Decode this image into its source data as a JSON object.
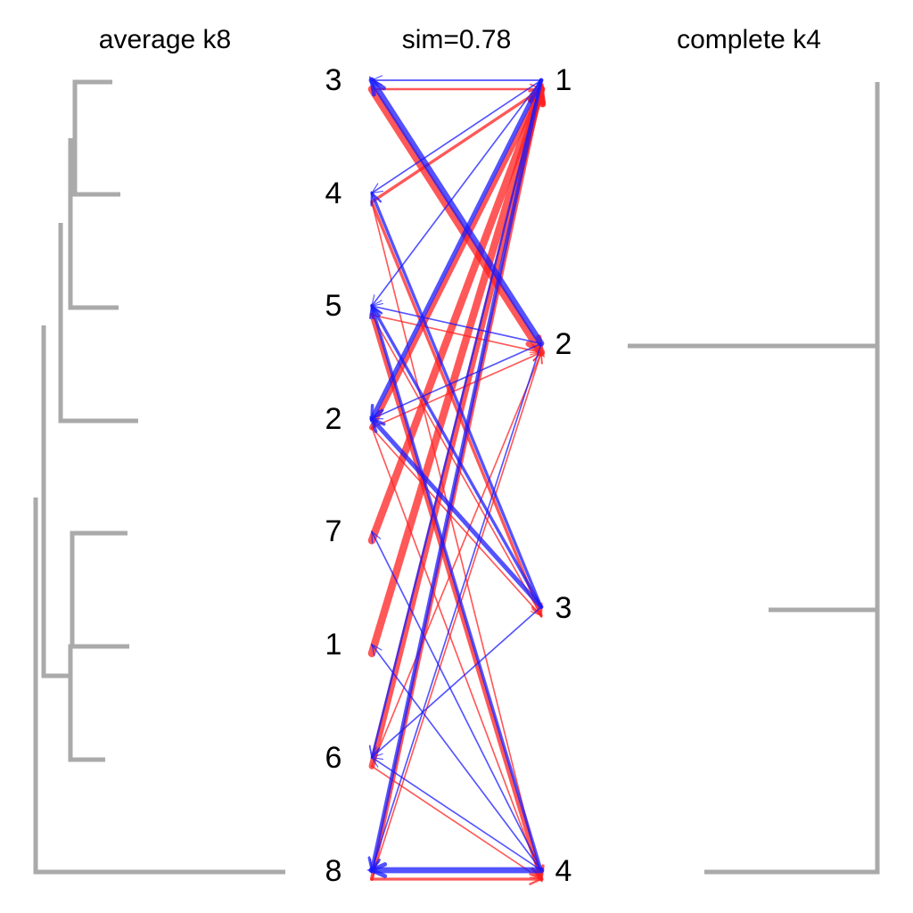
{
  "titles": {
    "left": "average k8",
    "center": "sim=0.78",
    "right": "complete k4"
  },
  "colors": {
    "dendrogram": "#aaaaaa",
    "red_flow": "#ff2020",
    "blue_flow": "#1a1aff",
    "background": "#ffffff"
  },
  "left_labels": [
    "3",
    "4",
    "5",
    "2",
    "7",
    "1",
    "6",
    "8"
  ],
  "right_labels": [
    "1",
    "2",
    "3",
    "4"
  ],
  "red_flows": [
    {
      "from": "3",
      "to": "1",
      "weight": 2
    },
    {
      "from": "3",
      "to": "2",
      "weight": 9
    },
    {
      "from": "4",
      "to": "1",
      "weight": 3
    },
    {
      "from": "4",
      "to": "3",
      "weight": 3
    },
    {
      "from": "4",
      "to": "4",
      "weight": 1
    },
    {
      "from": "5",
      "to": "2",
      "weight": 1
    },
    {
      "from": "5",
      "to": "3",
      "weight": 1
    },
    {
      "from": "5",
      "to": "4",
      "weight": 5
    },
    {
      "from": "2",
      "to": "1",
      "weight": 6
    },
    {
      "from": "2",
      "to": "2",
      "weight": 1
    },
    {
      "from": "2",
      "to": "3",
      "weight": 1
    },
    {
      "from": "2",
      "to": "4",
      "weight": 1
    },
    {
      "from": "7",
      "to": "1",
      "weight": 9
    },
    {
      "from": "1",
      "to": "1",
      "weight": 9
    },
    {
      "from": "6",
      "to": "1",
      "weight": 7
    },
    {
      "from": "6",
      "to": "2",
      "weight": 1
    },
    {
      "from": "6",
      "to": "4",
      "weight": 1
    },
    {
      "from": "8",
      "to": "1",
      "weight": 4
    },
    {
      "from": "8",
      "to": "2",
      "weight": 1
    },
    {
      "from": "8",
      "to": "4",
      "weight": 3
    }
  ],
  "blue_flows": [
    {
      "from": "1",
      "to": "3",
      "weight": 1
    },
    {
      "from": "1",
      "to": "4",
      "weight": 1
    },
    {
      "from": "1",
      "to": "2",
      "weight": 5
    },
    {
      "from": "1",
      "to": "5",
      "weight": 1
    },
    {
      "from": "1",
      "to": "6",
      "weight": 2
    },
    {
      "from": "1",
      "to": "8",
      "weight": 4
    },
    {
      "from": "2",
      "to": "3",
      "weight": 7
    },
    {
      "from": "2",
      "to": "5",
      "weight": 1
    },
    {
      "from": "2",
      "to": "2",
      "weight": 1
    },
    {
      "from": "2",
      "to": "8",
      "weight": 1
    },
    {
      "from": "3",
      "to": "4",
      "weight": 3
    },
    {
      "from": "3",
      "to": "5",
      "weight": 3
    },
    {
      "from": "3",
      "to": "2",
      "weight": 5
    },
    {
      "from": "3",
      "to": "6",
      "weight": 1
    },
    {
      "from": "4",
      "to": "7",
      "weight": 1
    },
    {
      "from": "4",
      "to": "1",
      "weight": 1
    },
    {
      "from": "4",
      "to": "6",
      "weight": 1
    },
    {
      "from": "4",
      "to": "5",
      "weight": 3
    },
    {
      "from": "4",
      "to": "8",
      "weight": 7
    }
  ]
}
